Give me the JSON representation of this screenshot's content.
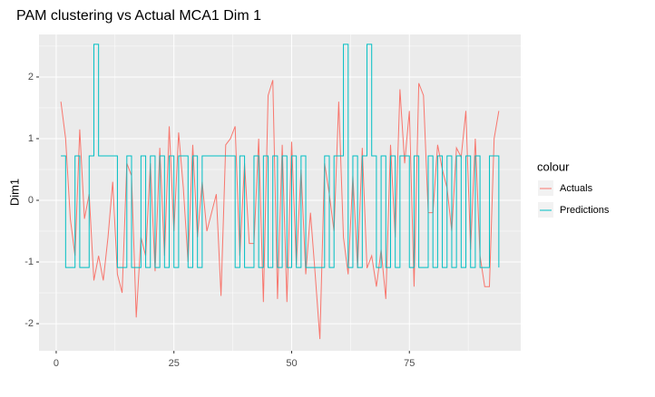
{
  "chart_data": {
    "type": "line",
    "title": "PAM clustering vs Actual MCA1 Dim 1",
    "y_label": "Dim1",
    "legend_title": "colour",
    "x": [
      1,
      2,
      3,
      4,
      5,
      6,
      7,
      8,
      9,
      10,
      11,
      12,
      13,
      14,
      15,
      16,
      17,
      18,
      19,
      20,
      21,
      22,
      23,
      24,
      25,
      26,
      27,
      28,
      29,
      30,
      31,
      32,
      33,
      34,
      35,
      36,
      37,
      38,
      39,
      40,
      41,
      42,
      43,
      44,
      45,
      46,
      47,
      48,
      49,
      50,
      51,
      52,
      53,
      54,
      55,
      56,
      57,
      58,
      59,
      60,
      61,
      62,
      63,
      64,
      65,
      66,
      67,
      68,
      69,
      70,
      71,
      72,
      73,
      74,
      75,
      76,
      77,
      78,
      79,
      80,
      81,
      82,
      83,
      84,
      85,
      86,
      87,
      88,
      89,
      90,
      91,
      92,
      93,
      94
    ],
    "series": [
      {
        "name": "Actuals",
        "color": "#f8766d",
        "values": [
          1.6,
          1.0,
          -0.3,
          -0.9,
          1.15,
          -0.3,
          0.1,
          -1.3,
          -0.9,
          -1.3,
          -0.6,
          0.3,
          -1.2,
          -1.5,
          0.6,
          0.4,
          -1.9,
          -0.6,
          -0.9,
          0.6,
          -1.15,
          0.85,
          -0.9,
          1.2,
          -0.5,
          1.1,
          0.2,
          -1.0,
          0.9,
          -0.6,
          0.3,
          -0.5,
          -0.2,
          0.1,
          -1.55,
          0.9,
          1.0,
          1.2,
          -0.9,
          0.6,
          -0.7,
          -0.7,
          1.0,
          -1.65,
          1.7,
          1.95,
          -1.6,
          0.9,
          -1.65,
          0.95,
          -1.05,
          0.5,
          -1.2,
          -0.2,
          -1.2,
          -2.25,
          0.6,
          0.1,
          -0.5,
          1.6,
          -0.6,
          -1.2,
          0.4,
          -1.1,
          0.85,
          -1.1,
          -0.9,
          -1.4,
          -0.8,
          -1.6,
          0.9,
          -0.6,
          1.8,
          0.6,
          1.45,
          -1.4,
          1.9,
          1.7,
          -0.2,
          -0.2,
          0.9,
          0.5,
          0.2,
          -0.5,
          0.85,
          0.7,
          1.45,
          -0.8,
          1.0,
          -0.9,
          -1.4,
          -1.4,
          1.0,
          1.45
        ]
      },
      {
        "name": "Predictions",
        "color": "#00bfc4",
        "step": true,
        "values": [
          0.72,
          -1.09,
          -1.09,
          0.72,
          -1.09,
          -1.09,
          0.72,
          2.53,
          0.72,
          0.72,
          0.72,
          0.72,
          -1.09,
          -1.09,
          0.72,
          -1.09,
          -1.09,
          0.72,
          -1.09,
          0.72,
          -1.09,
          0.72,
          -1.09,
          0.72,
          -1.09,
          0.72,
          0.72,
          -1.09,
          0.72,
          -1.09,
          0.72,
          0.72,
          0.72,
          0.72,
          0.72,
          0.72,
          0.72,
          -1.09,
          0.72,
          -1.09,
          -1.09,
          0.72,
          -1.09,
          0.72,
          -1.09,
          0.72,
          -1.09,
          0.72,
          -1.09,
          0.72,
          -1.09,
          0.72,
          -1.09,
          -1.09,
          -1.09,
          -1.09,
          0.72,
          -1.09,
          0.72,
          0.72,
          2.53,
          -1.09,
          0.72,
          -1.09,
          0.72,
          2.53,
          0.72,
          -1.09,
          0.72,
          -1.09,
          0.72,
          -1.09,
          0.72,
          0.72,
          -1.09,
          0.72,
          -1.09,
          -1.09,
          0.72,
          -1.09,
          0.72,
          -1.09,
          0.72,
          -1.09,
          0.72,
          -1.09,
          0.72,
          -1.09,
          0.72,
          -1.09,
          -1.09,
          0.72,
          0.72,
          -1.09
        ]
      }
    ],
    "xlim": [
      -3.65,
      98.65
    ],
    "xticks": [
      0,
      25,
      50,
      75
    ],
    "ylim": [
      -2.44,
      2.69
    ],
    "yticks": [
      -2,
      -1,
      0,
      1,
      2
    ],
    "grid": true
  }
}
